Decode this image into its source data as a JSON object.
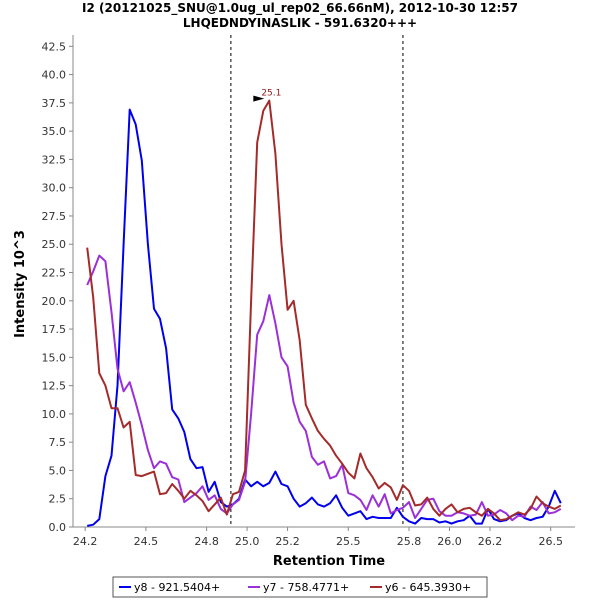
{
  "chart_data": {
    "type": "line",
    "title_line1": "I2 (20121025_SNU@1.0ug_ul_rep02_66.66nM), 2012-10-30 12:57",
    "title_line2": "LHQEDNDYINASLIK - 591.6320+++",
    "xlabel": "Retention Time",
    "ylabel": "Intensity 10^3",
    "xlim": [
      24.14,
      26.62
    ],
    "ylim": [
      0,
      43.5
    ],
    "x_ticks": [
      24.2,
      24.5,
      24.8,
      25.0,
      25.2,
      25.5,
      25.8,
      26.0,
      26.2,
      26.5
    ],
    "x_tick_labels": [
      "24.2",
      "24.5",
      "24.8",
      "25.0",
      "25.2",
      "25.5",
      "25.8",
      "26.0",
      "26.2",
      "26.5"
    ],
    "y_ticks": [
      0,
      2.5,
      5,
      7.5,
      10,
      12.5,
      15,
      17.5,
      20,
      22.5,
      25,
      27.5,
      30,
      32.5,
      35,
      37.5,
      40,
      42.5
    ],
    "y_tick_labels": [
      "0.0",
      "2.5",
      "5.0",
      "7.5",
      "10.0",
      "12.5",
      "15.0",
      "17.5",
      "20.0",
      "22.5",
      "25.0",
      "27.5",
      "30.0",
      "32.5",
      "35.0",
      "37.5",
      "40.0",
      "42.5"
    ],
    "vlines": [
      24.92,
      25.77
    ],
    "annotation": {
      "text": "25.1",
      "x": 25.1,
      "y": 37.7,
      "color": "#8b1a1a"
    },
    "legend_position": "bottom",
    "series": [
      {
        "name": "y8 - 921.5404+",
        "color": "#0000ee",
        "x": [
          24.21,
          24.24,
          24.27,
          24.3,
          24.33,
          24.36,
          24.39,
          24.42,
          24.45,
          24.48,
          24.51,
          24.54,
          24.57,
          24.6,
          24.63,
          24.66,
          24.69,
          24.72,
          24.75,
          24.78,
          24.81,
          24.84,
          24.87,
          24.9,
          24.93,
          24.96,
          24.99,
          25.02,
          25.05,
          25.08,
          25.11,
          25.14,
          25.17,
          25.2,
          25.23,
          25.26,
          25.29,
          25.32,
          25.35,
          25.38,
          25.41,
          25.44,
          25.47,
          25.5,
          25.53,
          25.56,
          25.59,
          25.62,
          25.65,
          25.68,
          25.71,
          25.74,
          25.77,
          25.8,
          25.83,
          25.86,
          25.89,
          25.92,
          25.95,
          25.98,
          26.01,
          26.04,
          26.07,
          26.1,
          26.13,
          26.16,
          26.19,
          26.22,
          26.25,
          26.28,
          26.31,
          26.34,
          26.37,
          26.4,
          26.43,
          26.46,
          26.49,
          26.52,
          26.55
        ],
        "y": [
          0.1,
          0.2,
          0.7,
          4.5,
          6.3,
          12.5,
          25.0,
          36.9,
          35.6,
          32.4,
          25.0,
          19.3,
          18.4,
          15.8,
          10.4,
          9.6,
          8.4,
          6.0,
          5.2,
          5.3,
          3.1,
          4.0,
          2.2,
          1.8,
          2.0,
          2.5,
          4.2,
          3.6,
          4.0,
          3.6,
          3.9,
          4.9,
          3.8,
          3.6,
          2.5,
          1.8,
          2.1,
          2.6,
          2.0,
          1.8,
          2.1,
          2.8,
          1.7,
          1.0,
          1.2,
          1.4,
          0.7,
          0.9,
          0.8,
          0.8,
          0.8,
          1.7,
          0.9,
          0.5,
          0.3,
          0.8,
          0.7,
          0.7,
          0.4,
          0.5,
          0.3,
          0.5,
          0.6,
          1.0,
          0.3,
          0.3,
          1.6,
          0.7,
          0.5,
          0.6,
          1.0,
          1.2,
          0.8,
          0.6,
          0.8,
          0.9,
          1.8,
          3.2,
          2.1
        ]
      },
      {
        "name": "y7 - 758.4771+",
        "color": "#9b30d9",
        "x": [
          24.21,
          24.24,
          24.27,
          24.3,
          24.33,
          24.36,
          24.39,
          24.42,
          24.45,
          24.48,
          24.51,
          24.54,
          24.57,
          24.6,
          24.63,
          24.66,
          24.69,
          24.72,
          24.75,
          24.78,
          24.81,
          24.84,
          24.87,
          24.9,
          24.93,
          24.96,
          24.99,
          25.02,
          25.05,
          25.08,
          25.11,
          25.14,
          25.17,
          25.2,
          25.23,
          25.26,
          25.29,
          25.32,
          25.35,
          25.38,
          25.41,
          25.44,
          25.47,
          25.5,
          25.53,
          25.56,
          25.59,
          25.62,
          25.65,
          25.68,
          25.71,
          25.74,
          25.77,
          25.8,
          25.83,
          25.86,
          25.89,
          25.92,
          25.95,
          25.98,
          26.01,
          26.04,
          26.07,
          26.1,
          26.13,
          26.16,
          26.19,
          26.22,
          26.25,
          26.28,
          26.31,
          26.34,
          26.37,
          26.4,
          26.43,
          26.46,
          26.49,
          26.52,
          26.55
        ],
        "y": [
          21.4,
          22.6,
          24.0,
          23.5,
          19.0,
          14.0,
          12.0,
          12.8,
          11.0,
          9.0,
          6.8,
          5.2,
          5.8,
          5.6,
          4.4,
          4.2,
          2.2,
          2.6,
          3.0,
          3.6,
          2.4,
          2.8,
          1.6,
          1.2,
          2.0,
          2.4,
          4.0,
          10.0,
          17.0,
          18.2,
          20.5,
          18.0,
          15.0,
          14.2,
          11.0,
          9.3,
          8.5,
          6.2,
          5.5,
          5.8,
          4.3,
          4.5,
          5.5,
          3.0,
          2.8,
          2.4,
          1.5,
          2.8,
          1.8,
          2.9,
          1.2,
          1.5,
          1.7,
          2.2,
          0.8,
          1.6,
          2.4,
          2.5,
          1.4,
          1.0,
          1.0,
          1.3,
          1.2,
          1.0,
          1.1,
          2.2,
          1.0,
          1.1,
          1.5,
          1.2,
          0.6,
          1.0,
          0.9,
          1.8,
          1.5,
          2.2,
          1.2,
          1.3,
          1.6
        ]
      },
      {
        "name": "y6 - 645.3930+",
        "color": "#a52a2a",
        "x": [
          24.21,
          24.24,
          24.27,
          24.3,
          24.33,
          24.36,
          24.39,
          24.42,
          24.45,
          24.48,
          24.51,
          24.54,
          24.57,
          24.6,
          24.63,
          24.66,
          24.69,
          24.72,
          24.75,
          24.78,
          24.81,
          24.84,
          24.87,
          24.9,
          24.93,
          24.96,
          24.99,
          25.02,
          25.05,
          25.08,
          25.11,
          25.14,
          25.17,
          25.2,
          25.23,
          25.26,
          25.29,
          25.32,
          25.35,
          25.38,
          25.41,
          25.44,
          25.47,
          25.5,
          25.53,
          25.56,
          25.59,
          25.62,
          25.65,
          25.68,
          25.71,
          25.74,
          25.77,
          25.8,
          25.83,
          25.86,
          25.89,
          25.92,
          25.95,
          25.98,
          26.01,
          26.04,
          26.07,
          26.1,
          26.13,
          26.16,
          26.19,
          26.22,
          26.25,
          26.28,
          26.31,
          26.34,
          26.37,
          26.4,
          26.43,
          26.46,
          26.49,
          26.52,
          26.55
        ],
        "y": [
          24.7,
          20.3,
          13.6,
          12.5,
          10.5,
          10.5,
          8.8,
          9.3,
          4.6,
          4.5,
          4.7,
          4.9,
          2.9,
          3.0,
          3.8,
          3.2,
          2.5,
          3.2,
          2.8,
          2.3,
          1.4,
          2.0,
          2.6,
          1.1,
          2.9,
          3.1,
          5.0,
          20.0,
          34.0,
          36.8,
          37.7,
          33.0,
          25.0,
          19.2,
          20.0,
          16.5,
          10.8,
          9.6,
          8.5,
          7.8,
          7.2,
          6.3,
          5.6,
          4.8,
          4.3,
          6.5,
          5.2,
          4.4,
          3.4,
          3.9,
          3.5,
          2.4,
          3.7,
          3.2,
          1.9,
          2.0,
          2.6,
          1.6,
          1.0,
          1.6,
          2.0,
          1.3,
          1.6,
          1.7,
          1.3,
          1.0,
          1.6,
          1.2,
          0.6,
          0.7,
          1.0,
          1.3,
          1.1,
          1.6,
          2.7,
          2.1,
          1.8,
          1.6,
          1.9
        ]
      }
    ]
  }
}
